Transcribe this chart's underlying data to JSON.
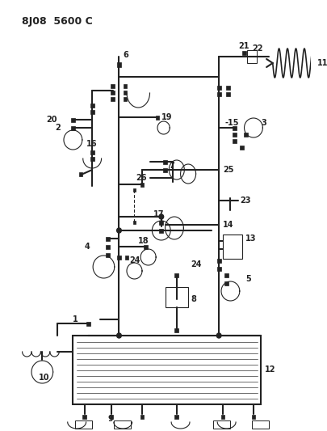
{
  "title": "8J08  5600 C",
  "bg_color": "#ffffff",
  "line_color": "#222222",
  "title_fontsize": 9,
  "label_fontsize": 7,
  "fig_w": 4.05,
  "fig_h": 5.33,
  "dpi": 100
}
